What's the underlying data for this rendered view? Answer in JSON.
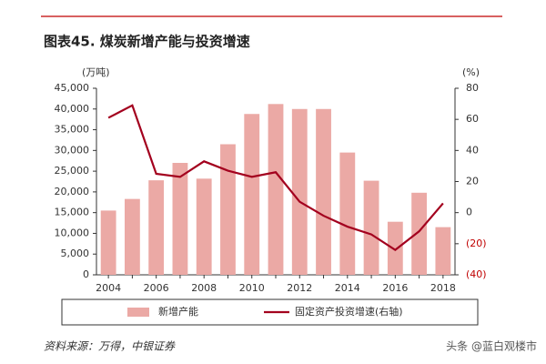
{
  "chart_data": {
    "type": "bar_line",
    "title": "图表45. 煤炭新增产能与投资增速",
    "y_unit": "(万吨)",
    "y2_unit": "(%)",
    "categories": [
      "2004",
      null,
      "2006",
      null,
      "2008",
      null,
      "2010",
      null,
      "2012",
      null,
      "2014",
      null,
      "2016",
      null,
      "2018"
    ],
    "series": [
      {
        "name": "新增产能",
        "type": "bar",
        "color": "#eba9a5",
        "values": [
          15500,
          18300,
          22800,
          27000,
          23200,
          31500,
          38800,
          41200,
          40000,
          40000,
          29500,
          22700,
          12800,
          19800,
          11500
        ]
      },
      {
        "name": "固定资产投资增速(右轴)",
        "type": "line",
        "axis": "y2",
        "color": "#a3001e",
        "values": [
          61,
          69,
          25,
          23,
          33,
          27,
          23,
          26,
          7,
          -2,
          -9,
          -14,
          -24,
          -12,
          6
        ]
      }
    ],
    "ylim": [
      0,
      45000
    ],
    "yticks": [
      0,
      {
        "value": 5000,
        "label": "5,000"
      },
      {
        "value": 10000,
        "label": "10,000"
      },
      {
        "value": 15000,
        "label": "15,000"
      },
      {
        "value": 20000,
        "label": "20,000"
      },
      {
        "value": 25000,
        "label": "25,000"
      },
      {
        "value": 30000,
        "label": "30,000"
      },
      {
        "value": 35000,
        "label": "35,000"
      },
      {
        "value": 40000,
        "label": "40,000"
      },
      {
        "value": 45000,
        "label": "45,000"
      }
    ],
    "y2lim": [
      -40,
      80
    ],
    "y2ticks": [
      {
        "value": -40,
        "label": "(40)"
      },
      {
        "value": -20,
        "label": "(20)"
      },
      0,
      20,
      40,
      60,
      80
    ],
    "grid": false,
    "source": "资料来源：万得，中银证券",
    "watermark": "头条 @蓝白观楼市"
  }
}
